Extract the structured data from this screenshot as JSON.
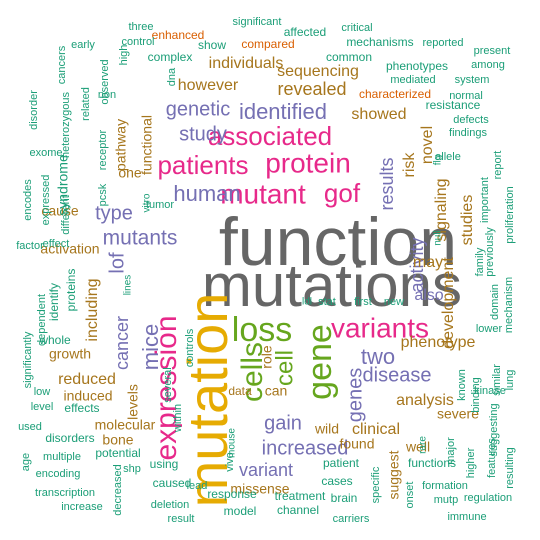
{
  "palette": {
    "teal": "#1b9e77",
    "orange": "#d95f02",
    "purple": "#7570b3",
    "magenta": "#e7298a",
    "green": "#66a61e",
    "gold": "#e6ab02",
    "brown": "#a6761d",
    "gray": "#666666"
  },
  "words": [
    {
      "text": "function",
      "color": "gray"
    },
    {
      "text": "mutations",
      "color": "gray"
    },
    {
      "text": "mutation",
      "color": "gold"
    },
    {
      "text": "expression",
      "color": "magenta"
    },
    {
      "text": "cells",
      "color": "green"
    },
    {
      "text": "gene",
      "color": "green"
    },
    {
      "text": "loss",
      "color": "green"
    },
    {
      "text": "mutant",
      "color": "magenta"
    },
    {
      "text": "protein",
      "color": "magenta"
    },
    {
      "text": "patients",
      "color": "magenta"
    },
    {
      "text": "associated",
      "color": "magenta"
    },
    {
      "text": "variants",
      "color": "magenta"
    },
    {
      "text": "human",
      "color": "purple"
    },
    {
      "text": "gof",
      "color": "magenta"
    },
    {
      "text": "identified",
      "color": "purple"
    },
    {
      "text": "genetic",
      "color": "purple"
    },
    {
      "text": "study",
      "color": "purple"
    },
    {
      "text": "mutants",
      "color": "purple"
    },
    {
      "text": "cell",
      "color": "green"
    },
    {
      "text": "mice",
      "color": "purple"
    },
    {
      "text": "cancer",
      "color": "purple"
    },
    {
      "text": "genes",
      "color": "purple"
    },
    {
      "text": "two",
      "color": "purple"
    },
    {
      "text": "disease",
      "color": "purple"
    },
    {
      "text": "increased",
      "color": "purple"
    },
    {
      "text": "gain",
      "color": "purple"
    },
    {
      "text": "variant",
      "color": "purple"
    },
    {
      "text": "activity",
      "color": "purple"
    },
    {
      "text": "results",
      "color": "purple"
    },
    {
      "text": "type",
      "color": "purple"
    },
    {
      "text": "lof",
      "color": "purple"
    },
    {
      "text": "revealed",
      "color": "brown"
    },
    {
      "text": "however",
      "color": "brown"
    },
    {
      "text": "individuals",
      "color": "brown"
    },
    {
      "text": "sequencing",
      "color": "brown"
    },
    {
      "text": "showed",
      "color": "brown"
    },
    {
      "text": "signaling",
      "color": "brown"
    },
    {
      "text": "risk",
      "color": "brown"
    },
    {
      "text": "novel",
      "color": "brown"
    },
    {
      "text": "may",
      "color": "brown"
    },
    {
      "text": "development",
      "color": "brown"
    },
    {
      "text": "also",
      "color": "purple"
    },
    {
      "text": "phenotype",
      "color": "brown"
    },
    {
      "text": "analysis",
      "color": "brown"
    },
    {
      "text": "clinical",
      "color": "brown"
    },
    {
      "text": "reduced",
      "color": "brown"
    },
    {
      "text": "including",
      "color": "brown"
    },
    {
      "text": "levels",
      "color": "brown"
    },
    {
      "text": "role",
      "color": "brown"
    },
    {
      "text": "can",
      "color": "brown"
    },
    {
      "text": "pathway",
      "color": "brown"
    },
    {
      "text": "functional",
      "color": "brown"
    },
    {
      "text": "one",
      "color": "brown"
    },
    {
      "text": "studies",
      "color": "brown"
    },
    {
      "text": "induced",
      "color": "brown"
    },
    {
      "text": "growth",
      "color": "brown"
    },
    {
      "text": "activation",
      "color": "brown"
    },
    {
      "text": "cause",
      "color": "brown"
    },
    {
      "text": "molecular",
      "color": "brown"
    },
    {
      "text": "bone",
      "color": "brown"
    },
    {
      "text": "data",
      "color": "brown"
    },
    {
      "text": "missense",
      "color": "brown"
    },
    {
      "text": "found",
      "color": "brown"
    },
    {
      "text": "suggest",
      "color": "brown"
    },
    {
      "text": "wild",
      "color": "brown"
    },
    {
      "text": "severe",
      "color": "brown"
    },
    {
      "text": "well",
      "color": "brown"
    },
    {
      "text": "compared",
      "color": "orange"
    },
    {
      "text": "enhanced",
      "color": "orange"
    },
    {
      "text": "characterized",
      "color": "orange"
    },
    {
      "text": "resistance",
      "color": "teal"
    },
    {
      "text": "phenotypes",
      "color": "teal"
    },
    {
      "text": "mechanisms",
      "color": "teal"
    },
    {
      "text": "common",
      "color": "teal"
    },
    {
      "text": "complex",
      "color": "teal"
    },
    {
      "text": "show",
      "color": "teal"
    },
    {
      "text": "significant",
      "color": "teal"
    },
    {
      "text": "affected",
      "color": "teal"
    },
    {
      "text": "critical",
      "color": "teal"
    },
    {
      "text": "reported",
      "color": "teal"
    },
    {
      "text": "present",
      "color": "teal"
    },
    {
      "text": "among",
      "color": "teal"
    },
    {
      "text": "system",
      "color": "teal"
    },
    {
      "text": "mediated",
      "color": "teal"
    },
    {
      "text": "normal",
      "color": "teal"
    },
    {
      "text": "defects",
      "color": "teal"
    },
    {
      "text": "findings",
      "color": "teal"
    },
    {
      "text": "report",
      "color": "teal"
    },
    {
      "text": "important",
      "color": "teal"
    },
    {
      "text": "cancers",
      "color": "teal"
    },
    {
      "text": "three",
      "color": "teal"
    },
    {
      "text": "control",
      "color": "teal"
    },
    {
      "text": "early",
      "color": "teal"
    },
    {
      "text": "disorder",
      "color": "teal"
    },
    {
      "text": "heterozygous",
      "color": "teal"
    },
    {
      "text": "observed",
      "color": "teal"
    },
    {
      "text": "high",
      "color": "teal"
    },
    {
      "text": "dna",
      "color": "teal"
    },
    {
      "text": "related",
      "color": "teal"
    },
    {
      "text": "non",
      "color": "teal"
    },
    {
      "text": "exome",
      "color": "teal"
    },
    {
      "text": "syndrome",
      "color": "teal"
    },
    {
      "text": "receptor",
      "color": "teal"
    },
    {
      "text": "pcsk",
      "color": "teal"
    },
    {
      "text": "encodes",
      "color": "teal"
    },
    {
      "text": "expressed",
      "color": "teal"
    },
    {
      "text": "different",
      "color": "teal"
    },
    {
      "text": "vitro",
      "color": "teal"
    },
    {
      "text": "tumor",
      "color": "teal"
    },
    {
      "text": "factor",
      "color": "teal"
    },
    {
      "text": "dependent",
      "color": "teal"
    },
    {
      "text": "effect",
      "color": "teal"
    },
    {
      "text": "proteins",
      "color": "teal"
    },
    {
      "text": "identify",
      "color": "teal"
    },
    {
      "text": "whole",
      "color": "teal"
    },
    {
      "text": "significantly",
      "color": "teal"
    },
    {
      "text": "low",
      "color": "teal"
    },
    {
      "text": "level",
      "color": "teal"
    },
    {
      "text": "effects",
      "color": "teal"
    },
    {
      "text": "used",
      "color": "teal"
    },
    {
      "text": "disorders",
      "color": "teal"
    },
    {
      "text": "multiple",
      "color": "teal"
    },
    {
      "text": "age",
      "color": "teal"
    },
    {
      "text": "encoding",
      "color": "teal"
    },
    {
      "text": "transcription",
      "color": "teal"
    },
    {
      "text": "increase",
      "color": "teal"
    },
    {
      "text": "decreased",
      "color": "teal"
    },
    {
      "text": "potential",
      "color": "teal"
    },
    {
      "text": "shp",
      "color": "teal"
    },
    {
      "text": "using",
      "color": "teal"
    },
    {
      "text": "caused",
      "color": "teal"
    },
    {
      "text": "deletion",
      "color": "teal"
    },
    {
      "text": "result",
      "color": "teal"
    },
    {
      "text": "lead",
      "color": "teal"
    },
    {
      "text": "vivo",
      "color": "teal"
    },
    {
      "text": "mouse",
      "color": "teal"
    },
    {
      "text": "response",
      "color": "teal"
    },
    {
      "text": "model",
      "color": "teal"
    },
    {
      "text": "treatment",
      "color": "teal"
    },
    {
      "text": "channel",
      "color": "teal"
    },
    {
      "text": "carriers",
      "color": "teal"
    },
    {
      "text": "brain",
      "color": "teal"
    },
    {
      "text": "cases",
      "color": "teal"
    },
    {
      "text": "patient",
      "color": "teal"
    },
    {
      "text": "specific",
      "color": "teal"
    },
    {
      "text": "onset",
      "color": "teal"
    },
    {
      "text": "rare",
      "color": "teal"
    },
    {
      "text": "functions",
      "color": "teal"
    },
    {
      "text": "formation",
      "color": "teal"
    },
    {
      "text": "immune",
      "color": "teal"
    },
    {
      "text": "mutp",
      "color": "teal"
    },
    {
      "text": "regulation",
      "color": "teal"
    },
    {
      "text": "resulting",
      "color": "teal"
    },
    {
      "text": "features",
      "color": "teal"
    },
    {
      "text": "higher",
      "color": "teal"
    },
    {
      "text": "major",
      "color": "teal"
    },
    {
      "text": "suggesting",
      "color": "teal"
    },
    {
      "text": "binding",
      "color": "teal"
    },
    {
      "text": "kinase",
      "color": "teal"
    },
    {
      "text": "similar",
      "color": "teal"
    },
    {
      "text": "lung",
      "color": "teal"
    },
    {
      "text": "known",
      "color": "teal"
    },
    {
      "text": "lower",
      "color": "teal"
    },
    {
      "text": "mechanism",
      "color": "teal"
    },
    {
      "text": "domain",
      "color": "teal"
    },
    {
      "text": "proliferation",
      "color": "teal"
    },
    {
      "text": "family",
      "color": "teal"
    },
    {
      "text": "previously",
      "color": "teal"
    },
    {
      "text": "allele",
      "color": "teal"
    },
    {
      "text": "flg",
      "color": "teal"
    },
    {
      "text": "null",
      "color": "teal"
    },
    {
      "text": "ldl",
      "color": "teal"
    },
    {
      "text": "stat",
      "color": "teal"
    },
    {
      "text": "first",
      "color": "teal"
    },
    {
      "text": "new",
      "color": "teal"
    },
    {
      "text": "lines",
      "color": "teal"
    },
    {
      "text": "controls",
      "color": "teal"
    },
    {
      "text": "several",
      "color": "teal"
    },
    {
      "text": "within",
      "color": "teal"
    }
  ]
}
